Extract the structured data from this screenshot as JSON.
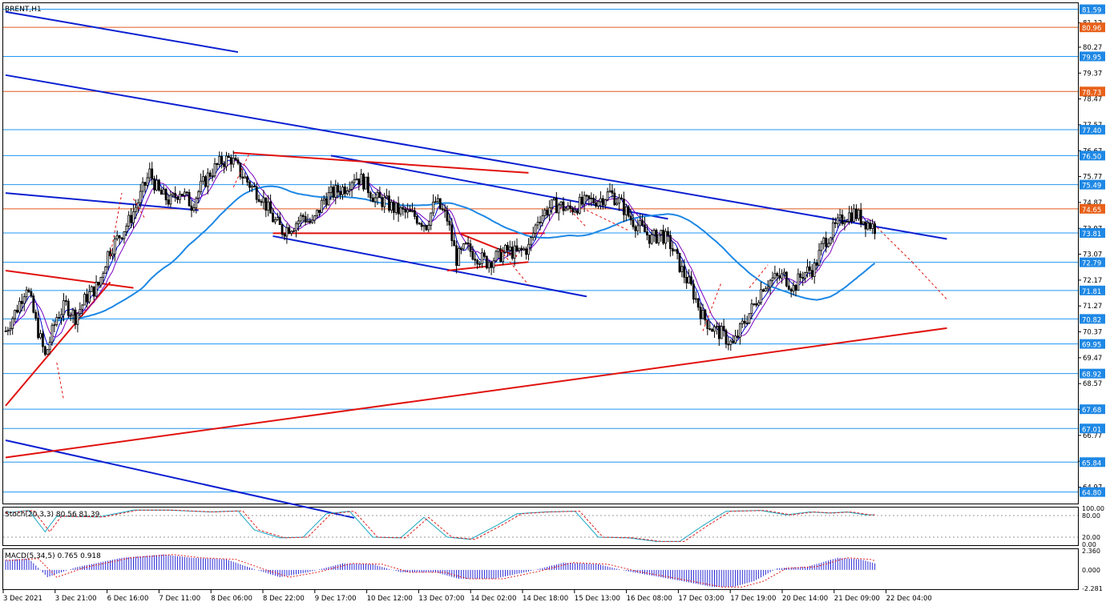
{
  "window": {
    "symbol_label": "BRENT,H1",
    "stoch_label": "Stoch(20,3,3) 80.56 81.39",
    "macd_label": "MACD(5,34,5) 0.765 0.918"
  },
  "colors": {
    "candle_up": "#000000",
    "candle_down": "#000000",
    "ma_fast": "#0000cc",
    "ma_slow": "#7b00c0",
    "ma_long": "#1e88e5",
    "trend_blue": "#0a1fd1",
    "trend_red": "#e0110d",
    "hline_blue": "#2196f3",
    "hline_orange": "#e0591d",
    "price_badge_blue": "#1e88e5",
    "price_badge_orange": "#e8611a",
    "stoch_main": "#1ba6c4",
    "stoch_signal": "#e02020",
    "macd_hist": "#2b2bd6",
    "macd_signal": "#e02020"
  },
  "price_axis": {
    "ticks": [
      "81.12",
      "80.27",
      "79.37",
      "78.47",
      "77.57",
      "76.67",
      "75.77",
      "74.87",
      "73.97",
      "73.07",
      "72.17",
      "71.27",
      "70.37",
      "69.47",
      "68.57",
      "67.67",
      "66.77",
      "65.87",
      "64.97"
    ]
  },
  "horizontal_levels": [
    {
      "price": "81.59",
      "style": "blue"
    },
    {
      "price": "80.96",
      "style": "orange"
    },
    {
      "price": "79.95",
      "style": "blue"
    },
    {
      "price": "78.73",
      "style": "orange"
    },
    {
      "price": "77.40",
      "style": "blue"
    },
    {
      "price": "76.50",
      "style": "blue"
    },
    {
      "price": "75.49",
      "style": "blue"
    },
    {
      "price": "74.65",
      "style": "orange"
    },
    {
      "price": "73.81",
      "style": "blue"
    },
    {
      "price": "72.79",
      "style": "blue"
    },
    {
      "price": "71.81",
      "style": "blue"
    },
    {
      "price": "70.82",
      "style": "blue"
    },
    {
      "price": "69.95",
      "style": "blue"
    },
    {
      "price": "68.92",
      "style": "blue"
    },
    {
      "price": "67.68",
      "style": "blue"
    },
    {
      "price": "67.01",
      "style": "blue"
    },
    {
      "price": "65.84",
      "style": "blue"
    },
    {
      "price": "64.80",
      "style": "blue"
    }
  ],
  "time_axis": {
    "labels": [
      "3 Dec 2021",
      "3 Dec 21:00",
      "6 Dec 16:00",
      "7 Dec 11:00",
      "8 Dec 06:00",
      "8 Dec 22:00",
      "9 Dec 17:00",
      "10 Dec 12:00",
      "13 Dec 07:00",
      "14 Dec 02:00",
      "14 Dec 18:00",
      "15 Dec 13:00",
      "16 Dec 08:00",
      "17 Dec 03:00",
      "17 Dec 19:00",
      "20 Dec 14:00",
      "21 Dec 09:00",
      "22 Dec 04:00"
    ]
  },
  "stoch_axis": {
    "ticks": [
      "100.00",
      "80.00",
      "20.00",
      "0.00"
    ]
  },
  "macd_axis": {
    "ticks": [
      "2.360",
      "0.000",
      "-2.281"
    ]
  },
  "chart_data": {
    "type": "candlestick",
    "symbol": "BRENT",
    "timeframe": "H1",
    "ylim": [
      64.4,
      81.8
    ],
    "price_anchors": [
      [
        0,
        70.4
      ],
      [
        5,
        71.2
      ],
      [
        9,
        72.0
      ],
      [
        13,
        70.7
      ],
      [
        17,
        69.5
      ],
      [
        22,
        70.9
      ],
      [
        26,
        71.3
      ],
      [
        30,
        70.9
      ],
      [
        35,
        71.6
      ],
      [
        40,
        72.0
      ],
      [
        44,
        73.1
      ],
      [
        48,
        73.6
      ],
      [
        53,
        74.2
      ],
      [
        57,
        74.9
      ],
      [
        62,
        75.9
      ],
      [
        66,
        75.2
      ],
      [
        71,
        74.9
      ],
      [
        75,
        75.3
      ],
      [
        80,
        74.8
      ],
      [
        84,
        75.4
      ],
      [
        88,
        75.9
      ],
      [
        93,
        76.3
      ],
      [
        97,
        76.4
      ],
      [
        101,
        75.9
      ],
      [
        106,
        75.4
      ],
      [
        110,
        75.1
      ],
      [
        115,
        74.3
      ],
      [
        119,
        73.9
      ],
      [
        124,
        74.1
      ],
      [
        128,
        74.4
      ],
      [
        132,
        74.1
      ],
      [
        137,
        75.0
      ],
      [
        141,
        75.2
      ],
      [
        146,
        75.4
      ],
      [
        150,
        75.8
      ],
      [
        154,
        75.6
      ],
      [
        159,
        75.0
      ],
      [
        163,
        74.9
      ],
      [
        168,
        74.6
      ],
      [
        172,
        74.5
      ],
      [
        176,
        74.4
      ],
      [
        181,
        74.1
      ],
      [
        185,
        74.9
      ],
      [
        190,
        74.3
      ],
      [
        194,
        72.9
      ],
      [
        198,
        73.3
      ],
      [
        203,
        73.0
      ],
      [
        207,
        72.8
      ],
      [
        212,
        73.0
      ],
      [
        216,
        73.2
      ],
      [
        220,
        73.1
      ],
      [
        225,
        73.3
      ],
      [
        229,
        74.3
      ],
      [
        234,
        74.7
      ],
      [
        238,
        74.8
      ],
      [
        242,
        74.6
      ],
      [
        247,
        74.8
      ],
      [
        251,
        74.9
      ],
      [
        256,
        75.0
      ],
      [
        260,
        75.2
      ],
      [
        264,
        74.9
      ],
      [
        269,
        74.3
      ],
      [
        273,
        74.0
      ],
      [
        278,
        73.6
      ],
      [
        282,
        73.8
      ],
      [
        286,
        73.4
      ],
      [
        291,
        72.5
      ],
      [
        295,
        71.9
      ],
      [
        300,
        70.9
      ],
      [
        304,
        70.5
      ],
      [
        308,
        70.3
      ],
      [
        313,
        69.9
      ],
      [
        317,
        70.6
      ],
      [
        322,
        71.3
      ],
      [
        326,
        72.0
      ],
      [
        330,
        72.2
      ],
      [
        335,
        72.3
      ],
      [
        339,
        71.9
      ],
      [
        343,
        72.4
      ],
      [
        348,
        72.6
      ],
      [
        352,
        73.5
      ],
      [
        357,
        74.0
      ],
      [
        361,
        74.4
      ],
      [
        365,
        74.5
      ],
      [
        370,
        74.2
      ],
      [
        374,
        74.0
      ]
    ],
    "moving_averages": [
      {
        "name": "fast",
        "period_hint": "short",
        "color": "#0000cc"
      },
      {
        "name": "slow",
        "period_hint": "medium",
        "color": "#7b00c0"
      },
      {
        "name": "long",
        "period_hint": "long",
        "color": "#1e88e5"
      }
    ],
    "trend_lines": [
      {
        "color": "blue",
        "from": [
          0,
          81.5
        ],
        "to": [
          100,
          80.1
        ]
      },
      {
        "color": "blue",
        "from": [
          0,
          79.3
        ],
        "to": [
          405,
          73.6
        ]
      },
      {
        "color": "blue",
        "from": [
          0,
          75.2
        ],
        "to": [
          83,
          74.6
        ]
      },
      {
        "color": "blue",
        "from": [
          115,
          73.7
        ],
        "to": [
          250,
          71.6
        ]
      },
      {
        "color": "blue",
        "from": [
          140,
          76.5
        ],
        "to": [
          285,
          74.3
        ]
      },
      {
        "color": "blue",
        "from": [
          0,
          66.6
        ],
        "to": [
          150,
          63.9
        ]
      },
      {
        "color": "red",
        "from": [
          0,
          67.8
        ],
        "to": [
          45,
          72.1
        ]
      },
      {
        "color": "red",
        "from": [
          0,
          72.5
        ],
        "to": [
          55,
          71.9
        ]
      },
      {
        "color": "red",
        "from": [
          98,
          76.6
        ],
        "to": [
          225,
          75.9
        ]
      },
      {
        "color": "red",
        "from": [
          115,
          73.8
        ],
        "to": [
          232,
          73.8
        ]
      },
      {
        "color": "red",
        "from": [
          190,
          72.5
        ],
        "to": [
          225,
          72.8
        ]
      },
      {
        "color": "red",
        "from": [
          195,
          73.8
        ],
        "to": [
          220,
          73.0
        ]
      },
      {
        "color": "red",
        "from": [
          0,
          66.0
        ],
        "to": [
          405,
          70.5
        ]
      }
    ],
    "stochastic": {
      "k_period": 20,
      "d_period": 3,
      "slowing": 3,
      "main": 80.56,
      "signal": 81.39,
      "levels": [
        80,
        20
      ],
      "ylim": [
        0,
        100
      ],
      "anchors": [
        [
          0,
          88
        ],
        [
          10,
          94
        ],
        [
          17,
          35
        ],
        [
          22,
          78
        ],
        [
          40,
          76
        ],
        [
          55,
          95
        ],
        [
          70,
          95
        ],
        [
          88,
          90
        ],
        [
          100,
          93
        ],
        [
          107,
          40
        ],
        [
          118,
          18
        ],
        [
          128,
          20
        ],
        [
          138,
          85
        ],
        [
          148,
          92
        ],
        [
          158,
          20
        ],
        [
          170,
          18
        ],
        [
          180,
          75
        ],
        [
          190,
          20
        ],
        [
          200,
          14
        ],
        [
          212,
          55
        ],
        [
          220,
          85
        ],
        [
          232,
          90
        ],
        [
          245,
          92
        ],
        [
          255,
          20
        ],
        [
          268,
          18
        ],
        [
          280,
          8
        ],
        [
          290,
          8
        ],
        [
          300,
          52
        ],
        [
          310,
          92
        ],
        [
          325,
          94
        ],
        [
          336,
          82
        ],
        [
          346,
          90
        ],
        [
          354,
          87
        ],
        [
          362,
          90
        ],
        [
          370,
          82
        ]
      ]
    },
    "macd": {
      "fast": 5,
      "slow": 34,
      "signal_period": 5,
      "main": 0.765,
      "signal": 0.918,
      "ylim": [
        -2.281,
        2.36
      ],
      "anchors": [
        [
          0,
          1.2
        ],
        [
          10,
          1.4
        ],
        [
          18,
          -0.9
        ],
        [
          30,
          0.3
        ],
        [
          50,
          1.5
        ],
        [
          68,
          1.9
        ],
        [
          80,
          1.5
        ],
        [
          95,
          1.3
        ],
        [
          108,
          0.0
        ],
        [
          118,
          -0.9
        ],
        [
          130,
          -0.3
        ],
        [
          145,
          0.8
        ],
        [
          158,
          0.7
        ],
        [
          170,
          -0.3
        ],
        [
          185,
          -0.3
        ],
        [
          195,
          -1.1
        ],
        [
          210,
          -1.1
        ],
        [
          225,
          -0.2
        ],
        [
          240,
          0.9
        ],
        [
          255,
          0.7
        ],
        [
          268,
          -0.2
        ],
        [
          278,
          -0.7
        ],
        [
          295,
          -1.6
        ],
        [
          304,
          -2.1
        ],
        [
          313,
          -2.1
        ],
        [
          322,
          -1.4
        ],
        [
          332,
          0.2
        ],
        [
          345,
          0.4
        ],
        [
          358,
          1.5
        ],
        [
          368,
          1.3
        ],
        [
          374,
          0.8
        ]
      ]
    }
  }
}
